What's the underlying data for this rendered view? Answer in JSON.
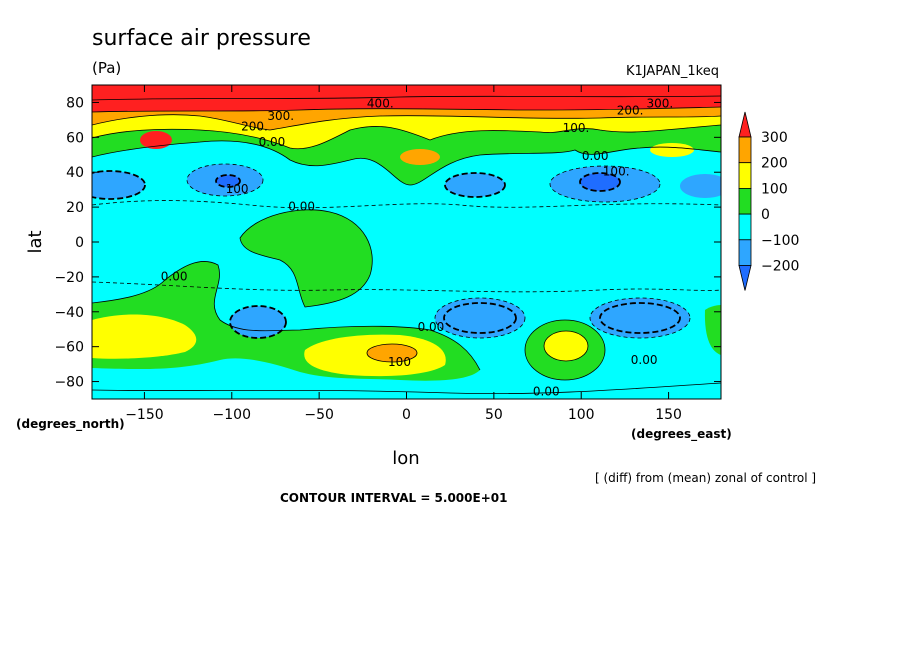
{
  "chart_data": {
    "type": "heatmap",
    "title": "surface air pressure",
    "units": "(Pa)",
    "run_label": "K1JAPAN_1keq",
    "xlabel": "lon",
    "ylabel": "lat",
    "x_unit_label": "(degrees_east)",
    "y_unit_label": "(degrees_north)",
    "xlim": [
      -180,
      180
    ],
    "ylim": [
      -90,
      90
    ],
    "x_ticks": [
      -150,
      -100,
      -50,
      0,
      50,
      100,
      150
    ],
    "x_tick_labels": [
      "−150",
      "−100",
      "−50",
      "0",
      "50",
      "100",
      "150"
    ],
    "y_ticks": [
      80,
      60,
      40,
      20,
      0,
      -20,
      -40,
      -60,
      -80
    ],
    "y_tick_labels": [
      "80",
      "60",
      "40",
      "20",
      "0",
      "−20",
      "−40",
      "−60",
      "−80"
    ],
    "grid": false,
    "note": "[ (diff) from (mean) zonal of control ]",
    "contour_interval_text": "CONTOUR INTERVAL = 5.000E+01",
    "colorbar": {
      "levels": [
        -200,
        -100,
        0,
        100,
        200,
        300
      ],
      "labels": [
        "−200",
        "−100",
        "0",
        "100",
        "200",
        "300"
      ],
      "colors": [
        "#1f6dff",
        "#2ea6ff",
        "#00ffff",
        "#22dd22",
        "#ffff00",
        "#ffa500",
        "#ff2020"
      ]
    },
    "contour_labels": [
      {
        "text": "400.",
        "lon": -15,
        "lat": 77
      },
      {
        "text": "300.",
        "lon": 145,
        "lat": 77
      },
      {
        "text": "200.",
        "lon": 128,
        "lat": 73
      },
      {
        "text": "300.",
        "lon": -72,
        "lat": 70
      },
      {
        "text": "200.",
        "lon": -87,
        "lat": 64
      },
      {
        "text": "0.00",
        "lon": -77,
        "lat": 55
      },
      {
        "text": "100.",
        "lon": 97,
        "lat": 63
      },
      {
        "text": "0.00",
        "lon": 108,
        "lat": 47
      },
      {
        "text": "100.",
        "lon": 120,
        "lat": 38
      },
      {
        "text": "100",
        "lon": -97,
        "lat": 28
      },
      {
        "text": "0.00",
        "lon": -60,
        "lat": 18
      },
      {
        "text": "0.00",
        "lon": -133,
        "lat": -22
      },
      {
        "text": "0.00",
        "lon": 14,
        "lat": -51
      },
      {
        "text": "100",
        "lon": -4,
        "lat": -71
      },
      {
        "text": "0.00",
        "lon": 136,
        "lat": -70
      },
      {
        "text": "0.00",
        "lon": 80,
        "lat": -88
      }
    ]
  }
}
